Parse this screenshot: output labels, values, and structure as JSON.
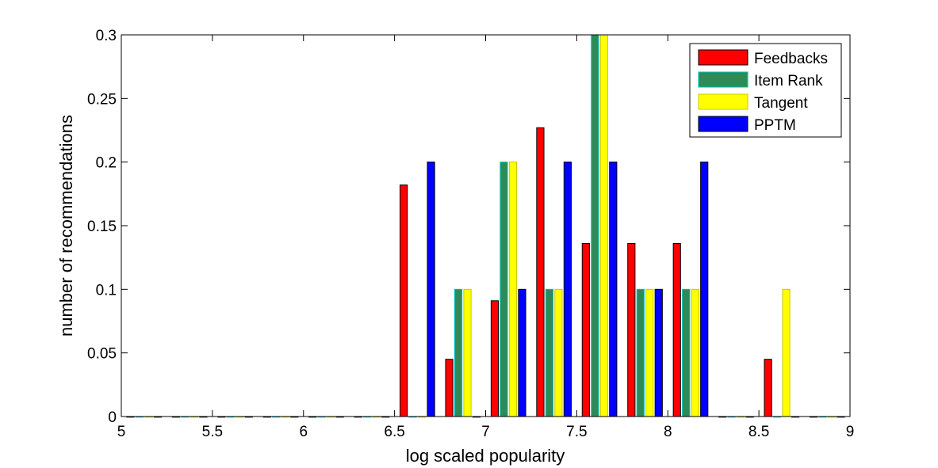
{
  "chart_data": {
    "type": "bar",
    "title": "",
    "xlabel": "log scaled popularity",
    "ylabel": "number of recommendations",
    "xlim": [
      5,
      9
    ],
    "ylim": [
      0,
      0.3
    ],
    "xticks": [
      5,
      5.5,
      6,
      6.5,
      7,
      7.5,
      8,
      8.5,
      9
    ],
    "xtick_labels": [
      "5",
      "5.5",
      "6",
      "6.5",
      "7",
      "7.5",
      "8",
      "8.5",
      "9"
    ],
    "yticks": [
      0,
      0.05,
      0.1,
      0.15,
      0.2,
      0.25,
      0.3
    ],
    "ytick_labels": [
      "0",
      "0.05",
      "0.1",
      "0.15",
      "0.2",
      "0.25",
      "0.3"
    ],
    "grid": false,
    "legend_position": "top-right",
    "bin_centers": [
      5.125,
      5.375,
      5.625,
      5.875,
      6.125,
      6.375,
      6.625,
      6.875,
      7.125,
      7.375,
      7.625,
      7.875,
      8.125,
      8.375,
      8.625,
      8.875
    ],
    "series": [
      {
        "name": "Feedbacks",
        "color": "#ff0000",
        "edge": "#000000",
        "values": [
          0,
          0,
          0,
          0,
          0,
          0,
          0.182,
          0.045,
          0.091,
          0.227,
          0.136,
          0.136,
          0.136,
          0,
          0.045,
          0
        ]
      },
      {
        "name": "Item Rank",
        "color": "#2e8b57",
        "edge": "#00bfbf",
        "values": [
          0,
          0,
          0,
          0,
          0,
          0,
          0,
          0.1,
          0.2,
          0.1,
          0.3,
          0.1,
          0.1,
          0,
          0,
          0
        ]
      },
      {
        "name": "Tangent",
        "color": "#ffff00",
        "edge": "#c8c800",
        "values": [
          0,
          0,
          0,
          0,
          0,
          0,
          0,
          0.1,
          0.2,
          0.1,
          0.3,
          0.1,
          0.1,
          0,
          0.1,
          0
        ]
      },
      {
        "name": "PPTM",
        "color": "#0000ff",
        "edge": "#000000",
        "values": [
          0,
          0,
          0,
          0,
          0,
          0,
          0.2,
          0,
          0.1,
          0.2,
          0.2,
          0.1,
          0.2,
          0,
          0,
          0
        ]
      }
    ]
  }
}
